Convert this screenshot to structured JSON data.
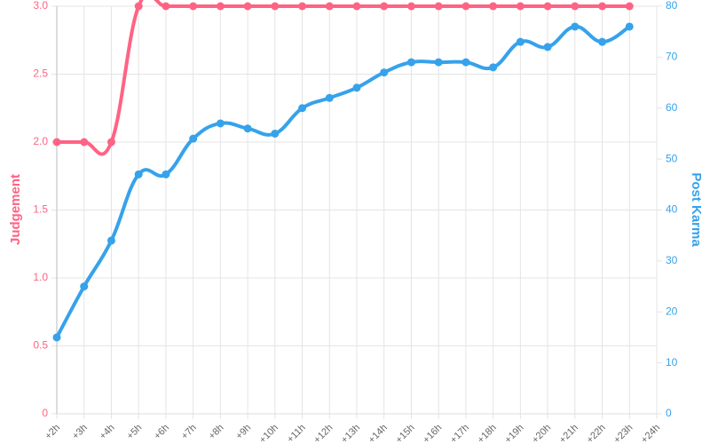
{
  "chart_data": {
    "type": "line",
    "categories": [
      "+2h",
      "+3h",
      "+4h",
      "+5h",
      "+6h",
      "+7h",
      "+8h",
      "+9h",
      "+10h",
      "+11h",
      "+12h",
      "+13h",
      "+14h",
      "+15h",
      "+16h",
      "+17h",
      "+18h",
      "+19h",
      "+20h",
      "+21h",
      "+22h",
      "+23h",
      "+24h"
    ],
    "series": [
      {
        "name": "Judgement",
        "color": "#ff6384",
        "axis": "y",
        "values": [
          2,
          2,
          2,
          3,
          3,
          3,
          3,
          3,
          3,
          3,
          3,
          3,
          3,
          3,
          3,
          3,
          3,
          3,
          3,
          3,
          3,
          3,
          null
        ]
      },
      {
        "name": "Post Karma",
        "color": "#36a2eb",
        "axis": "y2",
        "values": [
          15,
          25,
          34,
          47,
          47,
          54,
          57,
          56,
          55,
          60,
          62,
          64,
          67,
          69,
          69,
          69,
          68,
          73,
          72,
          76,
          73,
          76,
          null
        ]
      }
    ],
    "ylabel": "Judgement",
    "y2label": "Post Karma",
    "ylim": [
      0,
      3
    ],
    "yticks": [
      0,
      0.5,
      {
        "value": 1,
        "label": "1.0"
      },
      1.5,
      {
        "value": 2,
        "label": "2.0"
      },
      2.5,
      {
        "value": 3,
        "label": "3.0"
      }
    ],
    "y2lim": [
      0,
      80
    ],
    "y2ticks": [
      0,
      10,
      20,
      30,
      40,
      50,
      60,
      70,
      80
    ],
    "grid": true
  }
}
